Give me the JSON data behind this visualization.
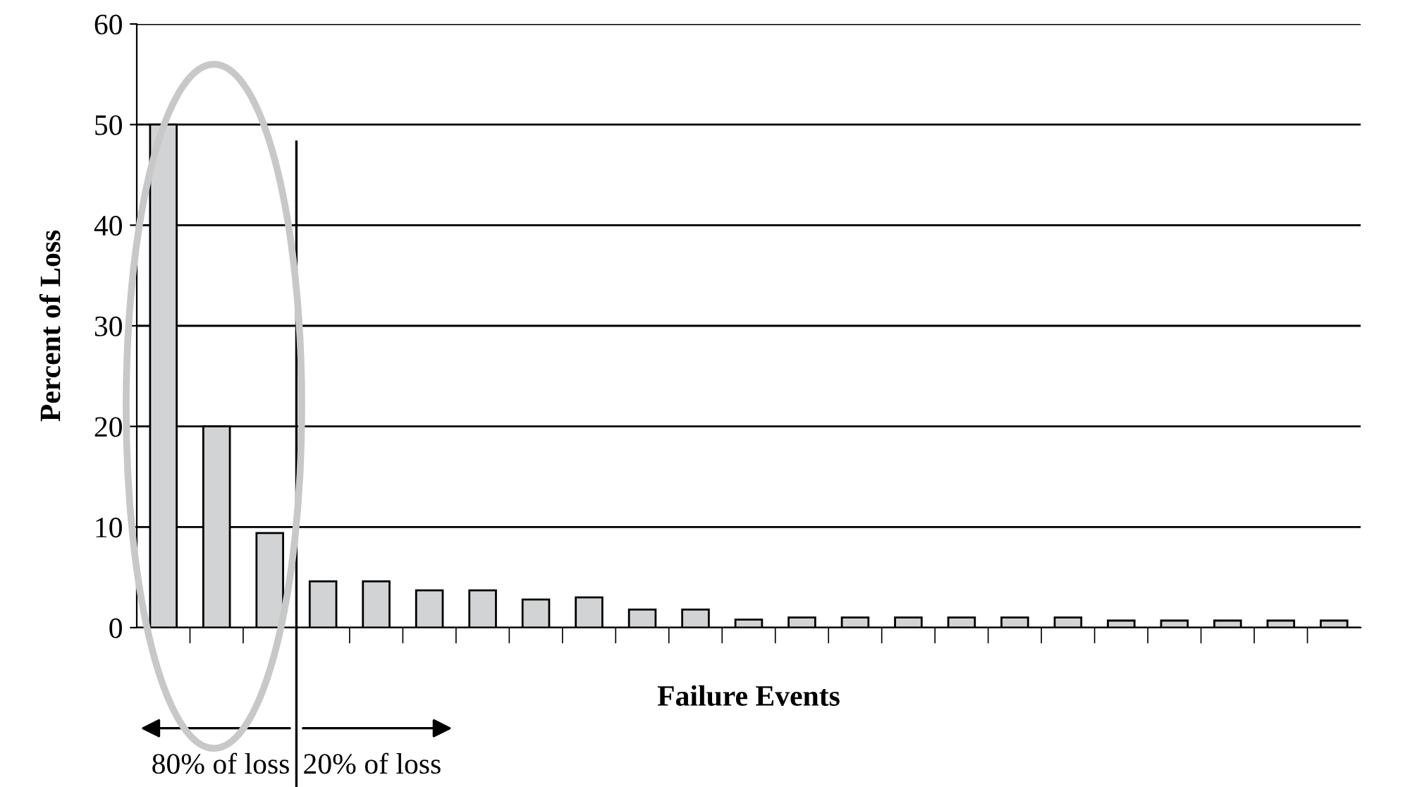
{
  "chart_data": {
    "type": "bar",
    "xlabel": "Failure Events",
    "ylabel": "Percent of Loss",
    "categories": [
      null,
      null,
      null,
      null,
      null,
      null,
      null,
      null,
      null,
      null,
      null,
      null,
      null,
      null,
      null,
      null,
      null,
      null,
      null,
      null,
      null,
      null,
      null
    ],
    "values": [
      50,
      20,
      9.4,
      4.6,
      4.6,
      3.7,
      3.7,
      2.8,
      3.0,
      1.8,
      1.8,
      0.8,
      1,
      1,
      1,
      1,
      1,
      1,
      0.7,
      0.7,
      0.7,
      0.7,
      0.7
    ],
    "color": "#d1d3d4",
    "ylim": [
      0,
      60
    ],
    "yticks": [
      0,
      10,
      20,
      30,
      40,
      50,
      60
    ],
    "grid": "y",
    "annotations": [
      "80% of loss",
      "20% of loss"
    ]
  }
}
